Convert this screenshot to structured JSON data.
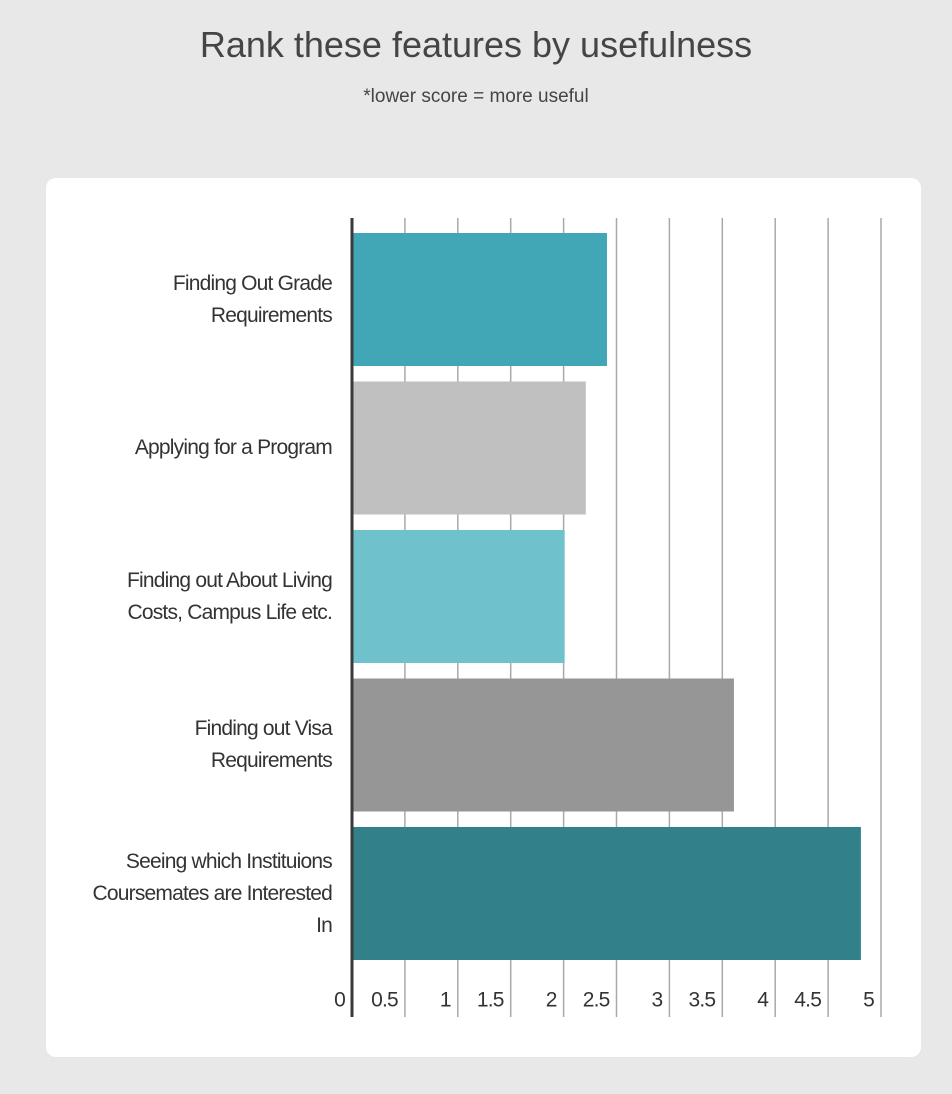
{
  "chart_data": {
    "type": "bar",
    "orientation": "horizontal",
    "title": "Rank these features by usefulness",
    "subtitle": "*lower score = more useful",
    "categories": [
      "Finding Out Grade Requirements",
      "Applying for a Program",
      "Finding out About Living Costs, Campus Life etc.",
      "Finding out Visa Requirements",
      "Seeing which Instituions Coursemates are Interested In"
    ],
    "values": [
      2.41,
      2.21,
      2.01,
      3.61,
      4.81
    ],
    "colors": [
      "#41a7b6",
      "#c0c0c0",
      "#6fc1cc",
      "#969696",
      "#32808a"
    ],
    "xlim": [
      0,
      5
    ],
    "xticks": [
      0,
      0.5,
      1,
      1.5,
      2,
      2.5,
      3,
      3.5,
      4,
      4.5,
      5
    ],
    "grid": true
  }
}
